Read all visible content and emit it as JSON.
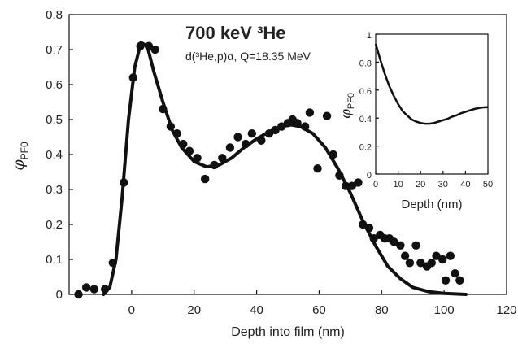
{
  "chart_data": [
    {
      "type": "scatter",
      "title": "700 keV ³He",
      "subtitle": "d(³He,p)α,  Q=18.35 MeV",
      "xlabel": "Depth into film (nm)",
      "ylabel": "φPF0",
      "ylabel_symbol": "φ",
      "ylabel_subscript": "PF0",
      "xlim": [
        -20,
        120
      ],
      "ylim": [
        0,
        0.8
      ],
      "x_ticks": [
        0,
        20,
        40,
        60,
        80,
        100,
        120
      ],
      "y_ticks": [
        0,
        0.1,
        0.2,
        0.3,
        0.4,
        0.5,
        0.6,
        0.7,
        0.8
      ],
      "x_tick_labels": [
        "0",
        "20",
        "40",
        "60",
        "80",
        "100",
        "120"
      ],
      "y_tick_labels": [
        "0",
        "0.1",
        "0.2",
        "0.3",
        "0.4",
        "0.5",
        "0.6",
        "0.7",
        "0.8"
      ],
      "grid": false,
      "series": [
        {
          "type": "scatter",
          "points": [
            [
              -17,
              0.0
            ],
            [
              -14.5,
              0.02
            ],
            [
              -12,
              0.015
            ],
            [
              -8.5,
              0.015
            ],
            [
              -6,
              0.09
            ],
            [
              -2.5,
              0.32
            ],
            [
              0.5,
              0.62
            ],
            [
              2.8,
              0.71
            ],
            [
              5.5,
              0.71
            ],
            [
              7.5,
              0.7
            ],
            [
              10,
              0.53
            ],
            [
              12.5,
              0.48
            ],
            [
              14.5,
              0.46
            ],
            [
              16.5,
              0.43
            ],
            [
              18.5,
              0.41
            ],
            [
              21,
              0.39
            ],
            [
              23.5,
              0.33
            ],
            [
              26.5,
              0.37
            ],
            [
              29,
              0.39
            ],
            [
              31.5,
              0.42
            ],
            [
              34,
              0.45
            ],
            [
              36.5,
              0.43
            ],
            [
              38.5,
              0.46
            ],
            [
              41.5,
              0.44
            ],
            [
              44,
              0.46
            ],
            [
              46,
              0.47
            ],
            [
              48,
              0.48
            ],
            [
              50,
              0.49
            ],
            [
              51.5,
              0.5
            ],
            [
              53,
              0.49
            ],
            [
              55.5,
              0.48
            ],
            [
              57,
              0.52
            ],
            [
              59.5,
              0.36
            ],
            [
              62.5,
              0.51
            ],
            [
              64.5,
              0.4
            ],
            [
              66.5,
              0.34
            ],
            [
              68.5,
              0.31
            ],
            [
              70.5,
              0.31
            ],
            [
              72.5,
              0.32
            ],
            [
              74,
              0.2
            ],
            [
              76,
              0.19
            ],
            [
              77.5,
              0.16
            ],
            [
              79.5,
              0.17
            ],
            [
              81,
              0.16
            ],
            [
              82.5,
              0.16
            ],
            [
              84,
              0.15
            ],
            [
              86,
              0.14
            ],
            [
              87.5,
              0.11
            ],
            [
              89,
              0.09
            ],
            [
              91,
              0.14
            ],
            [
              92.5,
              0.09
            ],
            [
              94.5,
              0.08
            ],
            [
              96,
              0.09
            ],
            [
              97.5,
              0.11
            ],
            [
              99.5,
              0.1
            ],
            [
              100.5,
              0.04
            ],
            [
              102,
              0.11
            ],
            [
              103.5,
              0.06
            ],
            [
              105,
              0.04
            ]
          ]
        },
        {
          "type": "line",
          "points": [
            [
              -9,
              0.0
            ],
            [
              -7,
              0.02
            ],
            [
              -5,
              0.1
            ],
            [
              -3,
              0.28
            ],
            [
              -1,
              0.5
            ],
            [
              1,
              0.65
            ],
            [
              3,
              0.72
            ],
            [
              5,
              0.71
            ],
            [
              7,
              0.64
            ],
            [
              10,
              0.55
            ],
            [
              13,
              0.47
            ],
            [
              16,
              0.42
            ],
            [
              20,
              0.38
            ],
            [
              24,
              0.365
            ],
            [
              28,
              0.37
            ],
            [
              32,
              0.39
            ],
            [
              36,
              0.42
            ],
            [
              40,
              0.445
            ],
            [
              44,
              0.465
            ],
            [
              48,
              0.48
            ],
            [
              51,
              0.485
            ],
            [
              54,
              0.48
            ],
            [
              58,
              0.46
            ],
            [
              62,
              0.42
            ],
            [
              66,
              0.36
            ],
            [
              70,
              0.29
            ],
            [
              74,
              0.21
            ],
            [
              78,
              0.14
            ],
            [
              82,
              0.08
            ],
            [
              86,
              0.045
            ],
            [
              90,
              0.02
            ],
            [
              95,
              0.008
            ],
            [
              100,
              0.003
            ],
            [
              107,
              0.0
            ]
          ]
        }
      ]
    },
    {
      "type": "line",
      "xlabel": "Depth (nm)",
      "ylabel": "φPF0",
      "ylabel_symbol": "φ",
      "ylabel_subscript": "PF0",
      "xlim": [
        0,
        50
      ],
      "ylim": [
        0,
        1
      ],
      "x_ticks": [
        0,
        10,
        20,
        30,
        40,
        50
      ],
      "y_ticks": [
        0,
        0.2,
        0.4,
        0.6,
        0.8,
        1
      ],
      "x_tick_labels": [
        "0",
        "10",
        "20",
        "30",
        "40",
        "50"
      ],
      "y_tick_labels": [
        "0",
        "0.2",
        "0.4",
        "0.6",
        "0.8",
        "1"
      ],
      "grid": false,
      "series": [
        {
          "points": [
            [
              0,
              0.93
            ],
            [
              2,
              0.82
            ],
            [
              4,
              0.72
            ],
            [
              6,
              0.63
            ],
            [
              8,
              0.56
            ],
            [
              10,
              0.5
            ],
            [
              12,
              0.45
            ],
            [
              14,
              0.42
            ],
            [
              16,
              0.39
            ],
            [
              18,
              0.375
            ],
            [
              20,
              0.365
            ],
            [
              22,
              0.36
            ],
            [
              24,
              0.36
            ],
            [
              26,
              0.365
            ],
            [
              28,
              0.375
            ],
            [
              30,
              0.385
            ],
            [
              32,
              0.395
            ],
            [
              34,
              0.41
            ],
            [
              36,
              0.42
            ],
            [
              38,
              0.435
            ],
            [
              40,
              0.445
            ],
            [
              42,
              0.455
            ],
            [
              44,
              0.465
            ],
            [
              46,
              0.472
            ],
            [
              48,
              0.477
            ],
            [
              50,
              0.478
            ]
          ]
        }
      ]
    }
  ]
}
